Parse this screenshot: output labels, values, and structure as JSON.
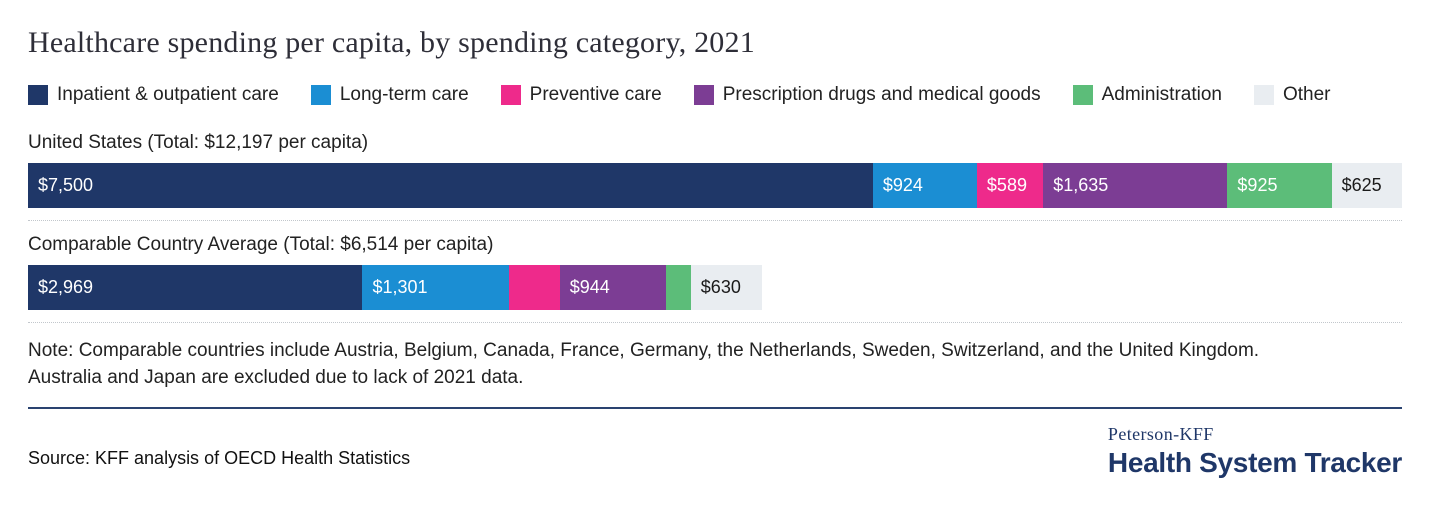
{
  "page": {
    "title": "Healthcare spending per capita, by spending category, 2021",
    "note_line1": "Note: Comparable countries include Austria, Belgium, Canada, France, Germany, the Netherlands, Sweden, Switzerland, and the United Kingdom.",
    "note_line2": "Australia and Japan are excluded due to lack of 2021 data.",
    "source": "Source: KFF analysis of OECD Health Statistics",
    "logo": {
      "top": "Peterson-KFF",
      "bottom": "Health System Tracker"
    }
  },
  "colors": {
    "navy": "#1f3768",
    "blue": "#1b8ed3",
    "pink": "#ee2a8b",
    "purple": "#7c3d94",
    "green": "#5cbd79",
    "light_gray": "#e9edf1",
    "dark_text": "#1a1a1a",
    "white_text": "#ffffff"
  },
  "chart_data": {
    "type": "bar",
    "subtype": "stacked-horizontal",
    "unit": "USD per capita",
    "max_scale": 12197,
    "grid": false,
    "legend_position": "top",
    "categories": [
      "Inpatient & outpatient care",
      "Long-term care",
      "Preventive care",
      "Prescription drugs and medical goods",
      "Administration",
      "Other"
    ],
    "legend": [
      {
        "label": "Inpatient & outpatient care",
        "color": "#1f3768"
      },
      {
        "label": "Long-term care",
        "color": "#1b8ed3"
      },
      {
        "label": "Preventive care",
        "color": "#ee2a8b"
      },
      {
        "label": "Prescription drugs and medical goods",
        "color": "#7c3d94"
      },
      {
        "label": "Administration",
        "color": "#5cbd79"
      },
      {
        "label": "Other",
        "color": "#e9edf1"
      }
    ],
    "rows": [
      {
        "label": "United States (Total: $12,197 per capita)",
        "total": 12197,
        "segments": [
          {
            "category": "Inpatient & outpatient care",
            "value": 7500,
            "display": "$7,500",
            "color": "#1f3768",
            "text_color": "#ffffff"
          },
          {
            "category": "Long-term care",
            "value": 924,
            "display": "$924",
            "color": "#1b8ed3",
            "text_color": "#ffffff"
          },
          {
            "category": "Preventive care",
            "value": 589,
            "display": "$589",
            "color": "#ee2a8b",
            "text_color": "#ffffff"
          },
          {
            "category": "Prescription drugs and medical goods",
            "value": 1635,
            "display": "$1,635",
            "color": "#7c3d94",
            "text_color": "#ffffff"
          },
          {
            "category": "Administration",
            "value": 925,
            "display": "$925",
            "color": "#5cbd79",
            "text_color": "#ffffff"
          },
          {
            "category": "Other",
            "value": 625,
            "display": "$625",
            "color": "#e9edf1",
            "text_color": "#1a1a1a"
          }
        ]
      },
      {
        "label": "Comparable Country Average (Total: $6,514 per capita)",
        "total": 6514,
        "segments": [
          {
            "category": "Inpatient & outpatient care",
            "value": 2969,
            "display": "$2,969",
            "color": "#1f3768",
            "text_color": "#ffffff"
          },
          {
            "category": "Long-term care",
            "value": 1301,
            "display": "$1,301",
            "color": "#1b8ed3",
            "text_color": "#ffffff"
          },
          {
            "category": "Preventive care",
            "value": 450,
            "display": "",
            "color": "#ee2a8b",
            "text_color": "#ffffff",
            "estimated": true
          },
          {
            "category": "Prescription drugs and medical goods",
            "value": 944,
            "display": "$944",
            "color": "#7c3d94",
            "text_color": "#ffffff"
          },
          {
            "category": "Administration",
            "value": 220,
            "display": "",
            "color": "#5cbd79",
            "text_color": "#ffffff",
            "estimated": true
          },
          {
            "category": "Other",
            "value": 630,
            "display": "$630",
            "color": "#e9edf1",
            "text_color": "#1a1a1a"
          }
        ]
      }
    ]
  }
}
